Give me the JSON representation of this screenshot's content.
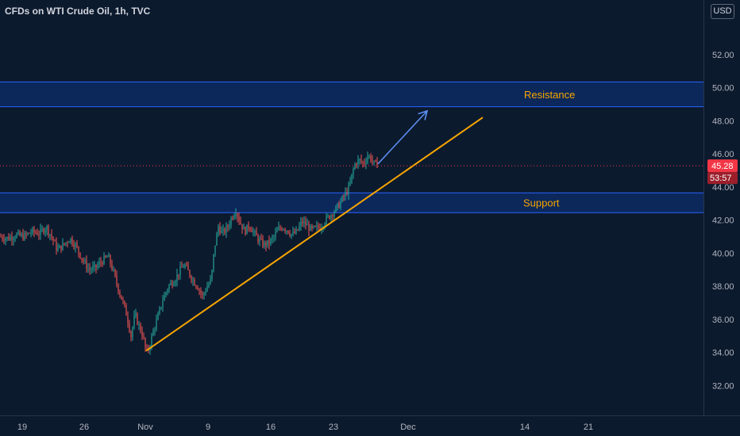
{
  "title": "CFDs on WTI Crude Oil, 1h, TVC",
  "currency": "USD",
  "colors": {
    "background": "#0c1a2e",
    "up": "#26a69a",
    "down": "#ef5350",
    "zone_fill": "#0d2c63",
    "zone_border": "#2962ff",
    "trendline": "#f7a600",
    "arrow": "#5b8def",
    "label": "#f7a600",
    "price_badge": "#f23645"
  },
  "chart_data": {
    "type": "candlestick",
    "ylim": [
      30.2,
      55.3
    ],
    "y_ticks": [
      "32.00",
      "34.00",
      "36.00",
      "38.00",
      "40.00",
      "42.00",
      "44.00",
      "46.00",
      "48.00",
      "50.00",
      "52.00"
    ],
    "x_ticks": [
      "19",
      "26",
      "Nov",
      "9",
      "16",
      "23",
      "Dec",
      "14",
      "21"
    ],
    "last_price": "45.28",
    "countdown": "53:57",
    "zones": [
      {
        "label": "Resistance",
        "low": 48.85,
        "high": 50.35
      },
      {
        "label": "Support",
        "low": 42.45,
        "high": 43.65
      }
    ],
    "trendline": {
      "from": {
        "x": "Nov 1",
        "y": 34.1
      },
      "to": {
        "x": "Dec 9",
        "y": 48.2
      }
    },
    "arrow": {
      "from": {
        "x": "Nov 27",
        "y": 45.4
      },
      "to": {
        "x": "Dec 1",
        "y": 48.6
      }
    },
    "price_path": [
      [
        0,
        41.0
      ],
      [
        10,
        40.9
      ],
      [
        20,
        41.1
      ],
      [
        30,
        41.0
      ],
      [
        40,
        41.3
      ],
      [
        50,
        41.2
      ],
      [
        58,
        41.6
      ],
      [
        65,
        41.0
      ],
      [
        72,
        40.2
      ],
      [
        80,
        40.5
      ],
      [
        88,
        40.9
      ],
      [
        96,
        40.4
      ],
      [
        104,
        39.6
      ],
      [
        112,
        39.0
      ],
      [
        120,
        39.1
      ],
      [
        128,
        39.5
      ],
      [
        136,
        39.8
      ],
      [
        142,
        39.0
      ],
      [
        148,
        38.0
      ],
      [
        155,
        37.0
      ],
      [
        160,
        36.2
      ],
      [
        165,
        35.0
      ],
      [
        170,
        36.3
      ],
      [
        175,
        35.6
      ],
      [
        180,
        35.0
      ],
      [
        184,
        34.0
      ],
      [
        188,
        34.3
      ],
      [
        193,
        35.3
      ],
      [
        198,
        36.0
      ],
      [
        205,
        37.2
      ],
      [
        212,
        38.0
      ],
      [
        220,
        38.4
      ],
      [
        226,
        38.9
      ],
      [
        232,
        39.3
      ],
      [
        238,
        38.8
      ],
      [
        244,
        38.3
      ],
      [
        250,
        37.9
      ],
      [
        255,
        37.4
      ],
      [
        260,
        37.9
      ],
      [
        266,
        38.4
      ],
      [
        270,
        40.3
      ],
      [
        275,
        41.6
      ],
      [
        280,
        41.2
      ],
      [
        286,
        41.5
      ],
      [
        292,
        42.2
      ],
      [
        297,
        42.6
      ],
      [
        302,
        41.9
      ],
      [
        308,
        41.3
      ],
      [
        314,
        41.7
      ],
      [
        320,
        41.2
      ],
      [
        326,
        40.8
      ],
      [
        332,
        40.5
      ],
      [
        338,
        40.6
      ],
      [
        344,
        40.9
      ],
      [
        350,
        41.4
      ],
      [
        356,
        41.6
      ],
      [
        362,
        41.4
      ],
      [
        368,
        41.1
      ],
      [
        374,
        41.3
      ],
      [
        380,
        41.9
      ],
      [
        386,
        41.7
      ],
      [
        392,
        41.4
      ],
      [
        398,
        41.5
      ],
      [
        404,
        41.6
      ],
      [
        410,
        42.0
      ],
      [
        416,
        42.3
      ],
      [
        422,
        42.6
      ],
      [
        428,
        43.0
      ],
      [
        434,
        43.5
      ],
      [
        440,
        44.0
      ],
      [
        444,
        44.9
      ],
      [
        448,
        45.5
      ],
      [
        453,
        45.6
      ],
      [
        458,
        45.4
      ],
      [
        463,
        45.9
      ],
      [
        468,
        45.7
      ],
      [
        472,
        45.3
      ],
      [
        476,
        45.4
      ]
    ]
  }
}
